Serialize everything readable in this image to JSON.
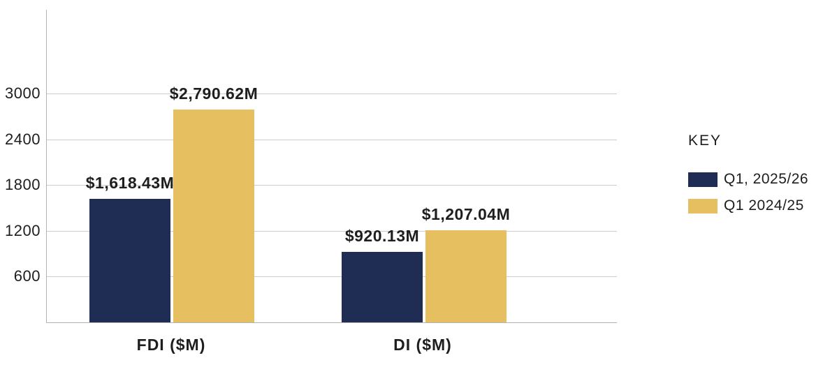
{
  "chart_data": {
    "type": "bar",
    "title": "",
    "categories": [
      "FDI ($M)",
      "DI ($M)"
    ],
    "series": [
      {
        "name": "Q1, 2025/26",
        "color": "#1F2D55",
        "values": [
          1618.43,
          920.13
        ],
        "value_labels": [
          "$1,618.43M",
          "$920.13M"
        ]
      },
      {
        "name": "Q1 2024/25",
        "color": "#E5BF60",
        "values": [
          2790.62,
          1207.04
        ],
        "value_labels": [
          "$2,790.62M",
          "$1,207.04M"
        ]
      }
    ],
    "y_ticks": [
      600,
      1200,
      1800,
      2400,
      3000
    ],
    "ylim": [
      0,
      4100
    ],
    "grid": true,
    "legend_title": "KEY",
    "legend_position": "right",
    "colors": {
      "gridline": "#cccccc",
      "axis": "#b3b3b3",
      "text": "#1e1e1e"
    }
  }
}
